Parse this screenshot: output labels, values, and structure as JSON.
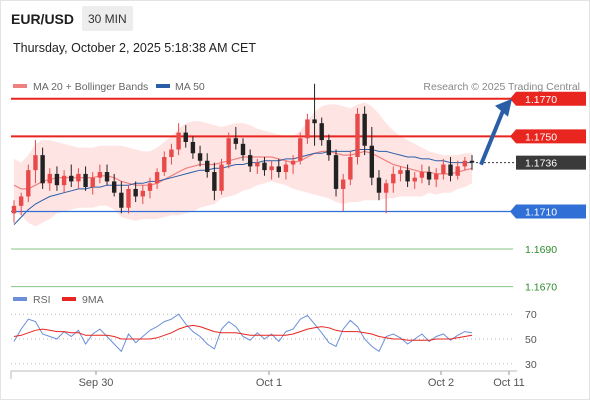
{
  "header": {
    "symbol": "EUR/USD",
    "timeframe": "30 MIN",
    "datetime": "Thursday, October 2, 2025 5:18:38 AM CET"
  },
  "colors": {
    "resistance": "#e8251f",
    "support": "#2f6fd6",
    "level_green": "#2e8b2e",
    "current": "#3a3a3a",
    "bollinger_band": "#ffd9d9",
    "ma20": "#f08080",
    "ma50": "#2a5fa8",
    "candle_up": "#e84a4a",
    "candle_down": "#222222",
    "arrow": "#2a5fa8",
    "rsi": "#6b8fd8",
    "rsi_ma": "#e8251f"
  },
  "chart_data": [
    {
      "type": "candlestick",
      "title": "",
      "legend": [
        {
          "label": "MA 20 + Bollinger Bands",
          "color": "#f08080"
        },
        {
          "label": "MA 50",
          "color": "#2a5fa8"
        }
      ],
      "copyright": "Research © 2025 Trading Central",
      "x_ticks": [
        "Sep 30",
        "Oct 1",
        "Oct 2",
        "Oct 11"
      ],
      "y_range": [
        1.1665,
        1.178
      ],
      "candles": [
        [
          1.1709,
          1.1716,
          1.1704,
          1.1713
        ],
        [
          1.1713,
          1.172,
          1.1708,
          1.1718
        ],
        [
          1.1718,
          1.1735,
          1.1715,
          1.1732
        ],
        [
          1.1732,
          1.1748,
          1.1725,
          1.174
        ],
        [
          1.174,
          1.1744,
          1.1722,
          1.1725
        ],
        [
          1.1725,
          1.1733,
          1.1721,
          1.173
        ],
        [
          1.173,
          1.1734,
          1.1721,
          1.1724
        ],
        [
          1.1724,
          1.1732,
          1.172,
          1.1729
        ],
        [
          1.1729,
          1.1735,
          1.1723,
          1.1726
        ],
        [
          1.1726,
          1.1733,
          1.1722,
          1.173
        ],
        [
          1.173,
          1.1734,
          1.1721,
          1.1723
        ],
        [
          1.1723,
          1.1731,
          1.1719,
          1.1728
        ],
        [
          1.1728,
          1.1735,
          1.1725,
          1.1731
        ],
        [
          1.1731,
          1.1735,
          1.1724,
          1.1726
        ],
        [
          1.1726,
          1.173,
          1.1718,
          1.172
        ],
        [
          1.172,
          1.1726,
          1.1709,
          1.1712
        ],
        [
          1.1712,
          1.1724,
          1.1709,
          1.1722
        ],
        [
          1.1722,
          1.1726,
          1.1715,
          1.1718
        ],
        [
          1.1718,
          1.1724,
          1.1714,
          1.1721
        ],
        [
          1.1721,
          1.1728,
          1.1717,
          1.1725
        ],
        [
          1.1725,
          1.1733,
          1.1722,
          1.1731
        ],
        [
          1.1731,
          1.1742,
          1.1729,
          1.1739
        ],
        [
          1.1739,
          1.1746,
          1.1735,
          1.1743
        ],
        [
          1.1743,
          1.1757,
          1.174,
          1.1752
        ],
        [
          1.1752,
          1.1756,
          1.1744,
          1.1747
        ],
        [
          1.1747,
          1.175,
          1.1738,
          1.1741
        ],
        [
          1.1741,
          1.1745,
          1.1734,
          1.1737
        ],
        [
          1.1737,
          1.1741,
          1.1728,
          1.1731
        ],
        [
          1.1731,
          1.1736,
          1.1716,
          1.1721
        ],
        [
          1.1721,
          1.1738,
          1.1719,
          1.1735
        ],
        [
          1.1735,
          1.1752,
          1.1733,
          1.1749
        ],
        [
          1.1749,
          1.1755,
          1.1743,
          1.1746
        ],
        [
          1.1746,
          1.1749,
          1.1737,
          1.174
        ],
        [
          1.174,
          1.1743,
          1.1731,
          1.1734
        ],
        [
          1.1734,
          1.1738,
          1.173,
          1.1736
        ],
        [
          1.1736,
          1.1739,
          1.1729,
          1.1732
        ],
        [
          1.1732,
          1.1737,
          1.1727,
          1.1734
        ],
        [
          1.1734,
          1.1738,
          1.1728,
          1.1731
        ],
        [
          1.1731,
          1.1737,
          1.1727,
          1.1735
        ],
        [
          1.1735,
          1.174,
          1.173,
          1.1737
        ],
        [
          1.1737,
          1.1752,
          1.1735,
          1.1749
        ],
        [
          1.1749,
          1.1762,
          1.1746,
          1.1759
        ],
        [
          1.1759,
          1.1778,
          1.1745,
          1.1757
        ],
        [
          1.1757,
          1.176,
          1.1745,
          1.1748
        ],
        [
          1.1748,
          1.1751,
          1.1737,
          1.174
        ],
        [
          1.174,
          1.1743,
          1.1718,
          1.1722
        ],
        [
          1.1722,
          1.173,
          1.171,
          1.1727
        ],
        [
          1.1727,
          1.1742,
          1.1724,
          1.1739
        ],
        [
          1.1739,
          1.1765,
          1.1735,
          1.1762
        ],
        [
          1.1762,
          1.1766,
          1.174,
          1.1745
        ],
        [
          1.1745,
          1.1755,
          1.1724,
          1.1728
        ],
        [
          1.1728,
          1.1732,
          1.1716,
          1.172
        ],
        [
          1.172,
          1.1727,
          1.1709,
          1.1725
        ],
        [
          1.1725,
          1.1734,
          1.172,
          1.173
        ],
        [
          1.173,
          1.1734,
          1.1726,
          1.1732
        ],
        [
          1.1732,
          1.1735,
          1.1723,
          1.1726
        ],
        [
          1.1726,
          1.1731,
          1.1722,
          1.1728
        ],
        [
          1.1728,
          1.1735,
          1.1725,
          1.1731
        ],
        [
          1.1731,
          1.1734,
          1.1724,
          1.1727
        ],
        [
          1.1727,
          1.1733,
          1.1723,
          1.173
        ],
        [
          1.173,
          1.1738,
          1.1727,
          1.1735
        ],
        [
          1.1735,
          1.1739,
          1.1726,
          1.1729
        ],
        [
          1.1729,
          1.1737,
          1.1727,
          1.1734
        ],
        [
          1.1734,
          1.1739,
          1.1732,
          1.1737
        ],
        [
          1.1737,
          1.174,
          1.1732,
          1.1736
        ]
      ],
      "ma20": [
        1.1724,
        1.1722,
        1.1722,
        1.1724,
        1.1726,
        1.1727,
        1.1728,
        1.1728,
        1.1728,
        1.1728,
        1.1728,
        1.1728,
        1.1729,
        1.1729,
        1.1728,
        1.1726,
        1.1725,
        1.1724,
        1.1724,
        1.1724,
        1.1725,
        1.1727,
        1.1729,
        1.1731,
        1.1733,
        1.1734,
        1.1735,
        1.1735,
        1.1735,
        1.1736,
        1.1737,
        1.1738,
        1.1739,
        1.1739,
        1.1739,
        1.1739,
        1.1739,
        1.1738,
        1.1737,
        1.1736,
        1.1737,
        1.1739,
        1.1741,
        1.1742,
        1.1742,
        1.1741,
        1.174,
        1.174,
        1.1741,
        1.1742,
        1.1741,
        1.1739,
        1.1737,
        1.1735,
        1.1734,
        1.1733,
        1.1732,
        1.1731,
        1.1731,
        1.173,
        1.173,
        1.173,
        1.1731,
        1.1732,
        1.1733
      ],
      "ma50": [
        1.1703,
        1.1707,
        1.1711,
        1.1714,
        1.1716,
        1.1718,
        1.1719,
        1.172,
        1.1721,
        1.1722,
        1.1722,
        1.1723,
        1.1723,
        1.1724,
        1.1724,
        1.1724,
        1.1724,
        1.1725,
        1.1725,
        1.1726,
        1.1726,
        1.1727,
        1.1728,
        1.1729,
        1.173,
        1.1731,
        1.1732,
        1.1732,
        1.1733,
        1.1733,
        1.1734,
        1.1735,
        1.1735,
        1.1736,
        1.1736,
        1.1737,
        1.1737,
        1.1737,
        1.1738,
        1.1738,
        1.1739,
        1.174,
        1.1741,
        1.1741,
        1.1742,
        1.1742,
        1.1742,
        1.1742,
        1.1743,
        1.1743,
        1.1743,
        1.1742,
        1.1742,
        1.1741,
        1.174,
        1.1739,
        1.1739,
        1.1738,
        1.1738,
        1.1737,
        1.1737,
        1.1736,
        1.1736,
        1.1736,
        1.1736
      ],
      "bb_upper": [
        1.1738,
        1.1736,
        1.174,
        1.1746,
        1.1748,
        1.1748,
        1.1747,
        1.1746,
        1.1745,
        1.1744,
        1.1744,
        1.1744,
        1.1745,
        1.1745,
        1.1745,
        1.1745,
        1.1744,
        1.1743,
        1.1742,
        1.1742,
        1.1744,
        1.1747,
        1.175,
        1.1754,
        1.1757,
        1.1758,
        1.1758,
        1.1757,
        1.1756,
        1.1755,
        1.1756,
        1.1757,
        1.1757,
        1.1756,
        1.1754,
        1.1753,
        1.1752,
        1.1751,
        1.175,
        1.175,
        1.1753,
        1.1758,
        1.1763,
        1.1766,
        1.1767,
        1.1767,
        1.1766,
        1.1765,
        1.1767,
        1.1768,
        1.1766,
        1.1762,
        1.1757,
        1.1753,
        1.175,
        1.1748,
        1.1746,
        1.1744,
        1.1742,
        1.1741,
        1.174,
        1.174,
        1.174,
        1.1741,
        1.1741
      ],
      "bb_lower": [
        1.171,
        1.1708,
        1.1704,
        1.1702,
        1.1704,
        1.1706,
        1.1709,
        1.171,
        1.1711,
        1.1712,
        1.1712,
        1.1712,
        1.1713,
        1.1713,
        1.1711,
        1.1707,
        1.1706,
        1.1705,
        1.1706,
        1.1706,
        1.1706,
        1.1707,
        1.1708,
        1.1708,
        1.1709,
        1.171,
        1.1712,
        1.1713,
        1.1714,
        1.1717,
        1.1718,
        1.1719,
        1.1721,
        1.1722,
        1.1724,
        1.1725,
        1.1726,
        1.1725,
        1.1724,
        1.1722,
        1.1721,
        1.172,
        1.1719,
        1.1718,
        1.1717,
        1.1715,
        1.1714,
        1.1715,
        1.1715,
        1.1716,
        1.1716,
        1.1716,
        1.1717,
        1.1717,
        1.1718,
        1.1718,
        1.1718,
        1.1718,
        1.172,
        1.1719,
        1.172,
        1.172,
        1.1722,
        1.1723,
        1.1725
      ],
      "levels": [
        {
          "value": 1.177,
          "label": "1.1770",
          "kind": "resistance"
        },
        {
          "value": 1.175,
          "label": "1.1750",
          "kind": "resistance"
        },
        {
          "value": 1.1736,
          "label": "1.1736",
          "kind": "current"
        },
        {
          "value": 1.171,
          "label": "1.1710",
          "kind": "support"
        },
        {
          "value": 1.169,
          "label": "1.1690",
          "kind": "level"
        },
        {
          "value": 1.167,
          "label": "1.1670",
          "kind": "level"
        }
      ],
      "forecast_target": 1.177
    },
    {
      "type": "line",
      "title": "",
      "legend": [
        {
          "label": "RSI",
          "color": "#6b8fd8"
        },
        {
          "label": "9MA",
          "color": "#e8251f"
        }
      ],
      "y_range": [
        25,
        75
      ],
      "y_ticks": [
        "70",
        "50",
        "30"
      ],
      "series": [
        {
          "name": "RSI",
          "values": [
            48,
            58,
            66,
            64,
            54,
            52,
            50,
            56,
            52,
            57,
            46,
            54,
            58,
            52,
            46,
            40,
            54,
            47,
            52,
            57,
            60,
            64,
            66,
            70,
            62,
            56,
            52,
            46,
            42,
            58,
            64,
            60,
            52,
            49,
            55,
            50,
            54,
            48,
            56,
            58,
            66,
            69,
            62,
            55,
            47,
            44,
            58,
            65,
            60,
            50,
            44,
            40,
            52,
            54,
            51,
            46,
            50,
            54,
            48,
            52,
            54,
            49,
            53,
            56,
            55
          ]
        },
        {
          "name": "9MA",
          "values": [
            52,
            53,
            55,
            57,
            58,
            57,
            56,
            56,
            55,
            55,
            53,
            53,
            53,
            53,
            52,
            50,
            50,
            50,
            50,
            50,
            51,
            53,
            55,
            58,
            60,
            61,
            60,
            58,
            56,
            55,
            55,
            55,
            54,
            53,
            53,
            53,
            53,
            53,
            53,
            54,
            56,
            58,
            59,
            60,
            59,
            57,
            56,
            56,
            56,
            55,
            54,
            52,
            51,
            50,
            50,
            49,
            49,
            49,
            49,
            50,
            50,
            50,
            51,
            52,
            53
          ]
        }
      ]
    }
  ]
}
